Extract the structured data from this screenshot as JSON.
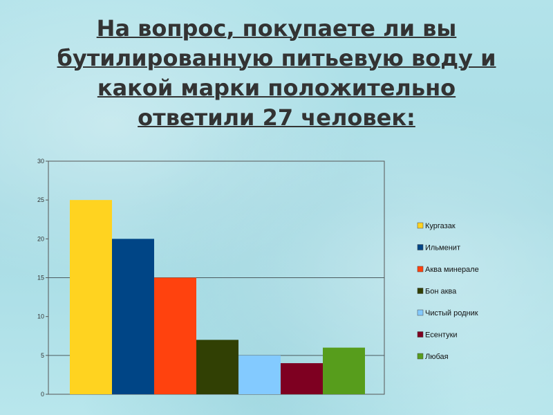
{
  "title": {
    "lines": [
      "На вопрос, покупаете ли вы",
      "бутилированную питьевую воду и",
      "какой марки положительно",
      "ответили 27 человек:"
    ]
  },
  "chart_data": {
    "type": "bar",
    "title": "",
    "xlabel": "",
    "ylabel": "",
    "ylim": [
      0,
      30
    ],
    "yticks": [
      0,
      5,
      10,
      15,
      20,
      25,
      30
    ],
    "gridlines": [
      5,
      15
    ],
    "legend_position": "right",
    "series": [
      {
        "name": "Кургазак",
        "value": 25,
        "color": "#ffd320"
      },
      {
        "name": "Ильменит",
        "value": 20,
        "color": "#004586"
      },
      {
        "name": "Аква минерале",
        "value": 15,
        "color": "#ff420e"
      },
      {
        "name": "Бон аква",
        "value": 7,
        "color": "#314004"
      },
      {
        "name": "Чистый родник",
        "value": 5,
        "color": "#83caff"
      },
      {
        "name": "Есентуки",
        "value": 4,
        "color": "#7e0021"
      },
      {
        "name": "Любая",
        "value": 6,
        "color": "#579d1c"
      }
    ]
  }
}
